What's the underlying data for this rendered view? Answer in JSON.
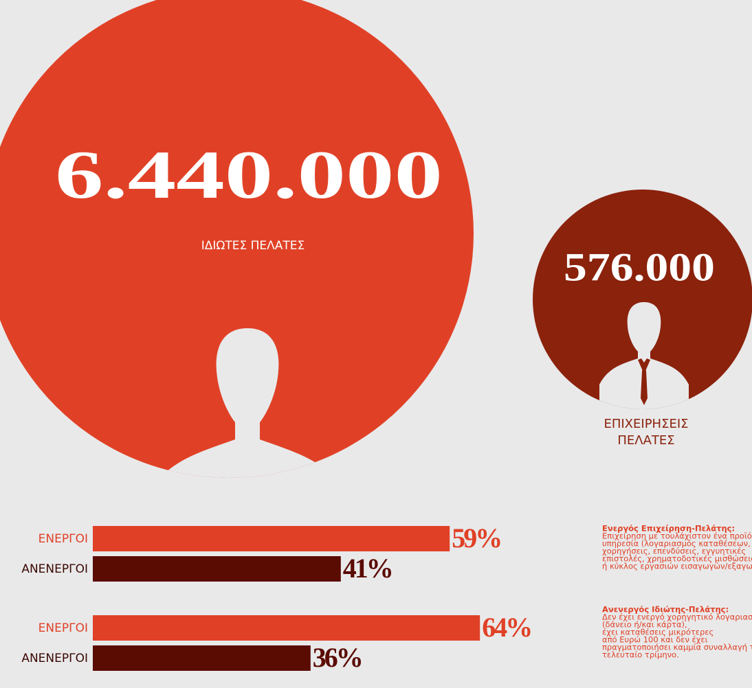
{
  "circles": [
    {
      "value_label": "6.440.000",
      "label": [
        "ΙΔΙΩΤΕΣ ΠΕΛΑΤΕΣ"
      ]
    },
    {
      "value_label": "576.000",
      "label": [
        "ΕΠΙΧΕΙΡΗΣΕΙΣ",
        "ΠΕΛΑΤΕΣ"
      ]
    }
  ],
  "chart_data": [
    {
      "type": "hbar",
      "categories": [
        "ΕΝΕΡΓΟΙ",
        "ΑΝΕΝΕΡΓΟΙ"
      ],
      "values": [
        59,
        41
      ],
      "value_labels": [
        "59%",
        "41%"
      ],
      "colors": [
        "#e04126",
        "#5a0b02"
      ],
      "xlim": [
        0,
        100
      ]
    },
    {
      "type": "hbar",
      "categories": [
        "ΕΝΕΡΓΟΙ",
        "ΑΝΕΝΕΡΓΟΙ"
      ],
      "values": [
        64,
        36
      ],
      "value_labels": [
        "64%",
        "36%"
      ],
      "colors": [
        "#e04126",
        "#5a0b02"
      ],
      "xlim": [
        0,
        100
      ]
    }
  ],
  "notes": [
    {
      "title": "Ενεργός Επιχείρηση-Πελάτης:",
      "lines": [
        "Επιχείρηση με τουλάχιστον ένα προϊόν ή",
        "υπηρεσία (λογαριασμός καταθέσεων,",
        "χορηγήσεις, επενδύσεις, εγγυητικές",
        "επιστολές, χρηματοδοτικές μισθώσεις)",
        "ή κύκλος εργασιών εισαγωγών/εξαγωγών"
      ]
    },
    {
      "title": "Ανενεργός Ιδιώτης-Πελάτης:",
      "lines": [
        "Δεν έχει ενεργό χορηγητικό λογαριασμό",
        "(δάνειο ή/και κάρτα),",
        "έχει καταθέσεις μικρότερες",
        "από Ευρώ 100 και δεν έχει",
        "πραγματοποιήσει καμμία συναλλαγή το",
        "τελευταίο τρίμηνο."
      ]
    }
  ]
}
